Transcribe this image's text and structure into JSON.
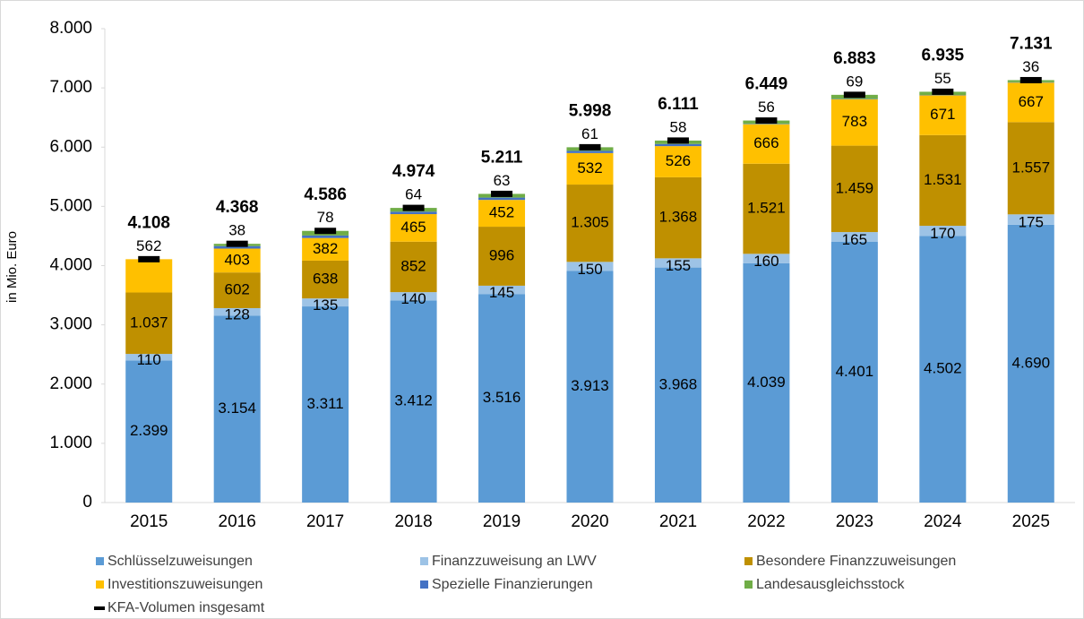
{
  "chart_data": {
    "type": "stacked_bar",
    "y_label": "in Mio. Euro",
    "categories": [
      "2015",
      "2016",
      "2017",
      "2018",
      "2019",
      "2020",
      "2021",
      "2022",
      "2023",
      "2024",
      "2025"
    ],
    "ylim": [
      0,
      8000
    ],
    "yticks": [
      0,
      {
        "value": 1000,
        "label": "1.000"
      },
      {
        "value": 2000,
        "label": "2.000"
      },
      {
        "value": 3000,
        "label": "3.000"
      },
      {
        "value": 4000,
        "label": "4.000"
      },
      {
        "value": 5000,
        "label": "5.000"
      },
      {
        "value": 6000,
        "label": "6.000"
      },
      {
        "value": 7000,
        "label": "7.000"
      },
      {
        "value": 8000,
        "label": "8.000"
      }
    ],
    "grid": false,
    "legend": "bottom",
    "series": [
      {
        "name": "Schlüsselzuweisungen",
        "color": "#5b9bd5",
        "values": [
          2399,
          3154,
          3311,
          3412,
          3516,
          3913,
          3968,
          4039,
          4401,
          4502,
          4690
        ],
        "value_labels": [
          "2.399",
          "3.154",
          "3.311",
          "3.412",
          "3.516",
          "3.913",
          "3.968",
          "4.039",
          "4.401",
          "4.502",
          "4.690"
        ]
      },
      {
        "name": "Finanzzuweisung an LWV",
        "color": "#9dc3e6",
        "values": [
          110,
          128,
          135,
          140,
          145,
          150,
          155,
          160,
          165,
          170,
          175
        ],
        "value_labels": [
          "110",
          "128",
          "135",
          "140",
          "145",
          "150",
          "155",
          "160",
          "165",
          "170",
          "175"
        ]
      },
      {
        "name": "Besondere Finanzzuweisungen",
        "color": "#bf9000",
        "values": [
          1037,
          602,
          638,
          852,
          996,
          1305,
          1368,
          1521,
          1459,
          1531,
          1557
        ],
        "value_labels": [
          "1.037",
          "602",
          "638",
          "852",
          "996",
          "1.305",
          "1.368",
          "1.521",
          "1.459",
          "1.531",
          "1.557"
        ]
      },
      {
        "name": "Investitionszuweisungen",
        "color": "#ffc000",
        "values": [
          562,
          403,
          382,
          465,
          452,
          532,
          526,
          666,
          783,
          671,
          667
        ],
        "value_labels": [
          "562",
          "403",
          "382",
          "465",
          "452",
          "532",
          "526",
          "666",
          "783",
          "671",
          "667"
        ]
      },
      {
        "name": "Spezielle Finanzierungen",
        "color": "#4472c4",
        "values": [
          null,
          43,
          42,
          41,
          39,
          37,
          36,
          7,
          6,
          6,
          6
        ]
      },
      {
        "name": "Landesausgleichsstock",
        "color": "#70ad47",
        "values": [
          null,
          38,
          78,
          64,
          63,
          61,
          58,
          56,
          69,
          55,
          36
        ],
        "value_labels": [
          null,
          "38",
          "78",
          "64",
          "63",
          "61",
          "58",
          "56",
          "69",
          "55",
          "36"
        ]
      },
      {
        "name": "KFA-Volumen insgesamt",
        "color": "#000000",
        "kind": "marker",
        "values": [
          4108,
          4368,
          4586,
          4974,
          5211,
          5998,
          6111,
          6449,
          6883,
          6935,
          7131
        ],
        "value_labels": [
          "4.108",
          "4.368",
          "4.586",
          "4.974",
          "5.211",
          "5.998",
          "6.111",
          "6.449",
          "6.883",
          "6.935",
          "7.131"
        ]
      }
    ]
  }
}
